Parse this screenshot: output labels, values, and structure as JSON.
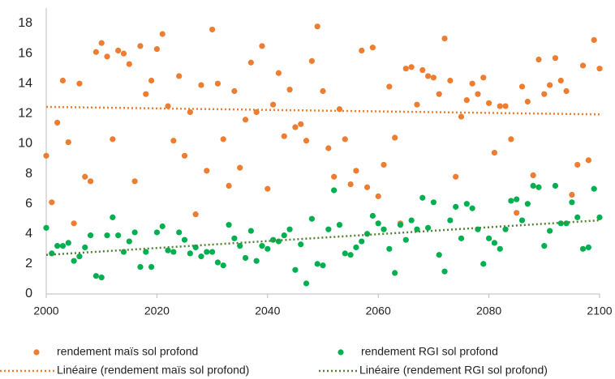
{
  "chart_data": {
    "type": "scatter",
    "x": [
      2000,
      2001,
      2002,
      2003,
      2004,
      2005,
      2006,
      2007,
      2008,
      2009,
      2010,
      2011,
      2012,
      2013,
      2014,
      2015,
      2016,
      2017,
      2018,
      2019,
      2020,
      2021,
      2022,
      2023,
      2024,
      2025,
      2026,
      2027,
      2028,
      2029,
      2030,
      2031,
      2032,
      2033,
      2034,
      2035,
      2036,
      2037,
      2038,
      2039,
      2040,
      2041,
      2042,
      2043,
      2044,
      2045,
      2046,
      2047,
      2048,
      2049,
      2050,
      2051,
      2052,
      2053,
      2054,
      2055,
      2056,
      2057,
      2058,
      2059,
      2060,
      2061,
      2062,
      2063,
      2064,
      2065,
      2066,
      2067,
      2068,
      2069,
      2070,
      2071,
      2072,
      2073,
      2074,
      2075,
      2076,
      2077,
      2078,
      2079,
      2080,
      2081,
      2082,
      2083,
      2084,
      2085,
      2086,
      2087,
      2088,
      2089,
      2090,
      2091,
      2092,
      2093,
      2094,
      2095,
      2096,
      2097,
      2098,
      2099,
      2100
    ],
    "series": [
      {
        "name": "rendement maïs sol profond",
        "color": "#ED7D31",
        "mark": "dot",
        "values": [
          9.2,
          6.1,
          11.4,
          14.2,
          10.1,
          4.7,
          14.0,
          7.8,
          7.5,
          16.1,
          16.7,
          15.8,
          10.3,
          16.2,
          16.0,
          15.3,
          7.5,
          16.5,
          13.3,
          14.2,
          16.3,
          17.3,
          12.5,
          10.2,
          14.5,
          9.2,
          12.1,
          5.3,
          13.9,
          8.2,
          17.6,
          14.0,
          10.3,
          7.2,
          13.5,
          8.4,
          11.6,
          15.4,
          12.1,
          16.5,
          7.0,
          12.6,
          14.7,
          10.5,
          13.6,
          11.1,
          11.3,
          10.2,
          15.5,
          17.8,
          13.5,
          9.7,
          7.8,
          12.3,
          10.3,
          7.3,
          8.2,
          16.2,
          7.1,
          16.4,
          6.5,
          8.6,
          13.8,
          10.4,
          4.7,
          15.0,
          15.1,
          12.6,
          14.9,
          14.5,
          14.4,
          13.3,
          17.0,
          14.2,
          7.8,
          11.8,
          12.9,
          14.0,
          13.3,
          14.4,
          12.7,
          9.4,
          12.5,
          12.5,
          10.3,
          5.4,
          13.8,
          12.8,
          7.9,
          15.6,
          13.3,
          13.9,
          15.7,
          14.2,
          13.5,
          6.6,
          8.6,
          15.2,
          8.9,
          16.9,
          15.0
        ]
      },
      {
        "name": "rendement RGI sol profond",
        "color": "#00B050",
        "mark": "dot",
        "values": [
          4.4,
          2.7,
          3.2,
          3.2,
          3.4,
          2.2,
          2.5,
          3.1,
          3.9,
          1.2,
          1.1,
          3.9,
          5.1,
          3.9,
          2.8,
          3.5,
          4.1,
          1.8,
          2.8,
          1.8,
          4.1,
          4.5,
          2.9,
          2.8,
          4.1,
          3.6,
          2.7,
          3.1,
          2.5,
          2.8,
          2.8,
          2.1,
          1.9,
          4.6,
          3.7,
          3.2,
          2.4,
          4.2,
          2.2,
          3.2,
          3.0,
          3.6,
          3.5,
          3.9,
          4.3,
          1.6,
          3.3,
          0.7,
          5.0,
          2.0,
          1.9,
          4.3,
          6.9,
          4.6,
          2.7,
          2.6,
          3.1,
          3.5,
          4.0,
          5.2,
          4.7,
          4.3,
          3.0,
          1.4,
          4.6,
          3.6,
          4.9,
          4.3,
          6.4,
          4.4,
          6.1,
          2.6,
          1.5,
          4.9,
          5.8,
          3.7,
          6.0,
          5.7,
          4.3,
          2.0,
          3.7,
          3.4,
          3.0,
          4.3,
          6.2,
          6.3,
          4.9,
          6.0,
          7.2,
          7.1,
          3.2,
          4.2,
          7.2,
          4.7,
          4.7,
          6.1,
          5.1,
          3.0,
          3.1,
          7.0,
          5.1
        ]
      },
      {
        "name": "Linéaire (rendement maïs sol profond)",
        "color": "#ED7D31",
        "mark": "dotted-line",
        "x": [
          2000,
          2100
        ],
        "values": [
          12.45,
          11.95
        ]
      },
      {
        "name": "Linéaire (rendement RGI sol profond)",
        "color": "#548235",
        "mark": "dotted-line",
        "x": [
          2000,
          2100
        ],
        "values": [
          2.6,
          4.9
        ]
      }
    ],
    "xlim": [
      2000,
      2100
    ],
    "xticks": [
      2000,
      2020,
      2040,
      2060,
      2080,
      2100
    ],
    "ylim": [
      0,
      18
    ],
    "yticks": [
      0,
      2,
      4,
      6,
      8,
      10,
      12,
      14,
      16,
      18
    ]
  }
}
